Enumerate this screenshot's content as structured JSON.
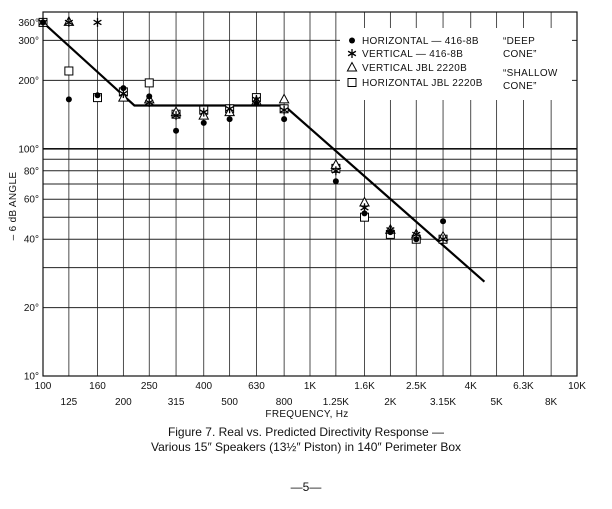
{
  "chart_data": {
    "type": "scatter",
    "title": "",
    "xlabel": "FREQUENCY, Hz",
    "ylabel": "– 6 dB ANGLE",
    "x_scale": "log",
    "y_scale": "log",
    "xlim": [
      100,
      10000
    ],
    "ylim": [
      10,
      400
    ],
    "x_ticks_upper": [
      {
        "value": 100,
        "label": "100"
      },
      {
        "value": 160,
        "label": "160"
      },
      {
        "value": 250,
        "label": "250"
      },
      {
        "value": 400,
        "label": "400"
      },
      {
        "value": 630,
        "label": "630"
      },
      {
        "value": 1000,
        "label": "1K"
      },
      {
        "value": 1600,
        "label": "1.6K"
      },
      {
        "value": 2500,
        "label": "2.5K"
      },
      {
        "value": 4000,
        "label": "4K"
      },
      {
        "value": 6300,
        "label": "6.3K"
      },
      {
        "value": 10000,
        "label": "10K"
      }
    ],
    "x_ticks_lower": [
      {
        "value": 125,
        "label": "125"
      },
      {
        "value": 200,
        "label": "200"
      },
      {
        "value": 315,
        "label": "315"
      },
      {
        "value": 500,
        "label": "500"
      },
      {
        "value": 800,
        "label": "800"
      },
      {
        "value": 1250,
        "label": "1.25K"
      },
      {
        "value": 2000,
        "label": "2K"
      },
      {
        "value": 3150,
        "label": "3.15K"
      },
      {
        "value": 5000,
        "label": "5K"
      },
      {
        "value": 8000,
        "label": "8K"
      }
    ],
    "y_ticks": [
      {
        "value": 10,
        "label": "10°"
      },
      {
        "value": 20,
        "label": "20°"
      },
      {
        "value": 40,
        "label": "40°"
      },
      {
        "value": 60,
        "label": "60°"
      },
      {
        "value": 80,
        "label": "80°"
      },
      {
        "value": 100,
        "label": "100°"
      },
      {
        "value": 200,
        "label": "200°"
      },
      {
        "value": 300,
        "label": "300°"
      },
      {
        "value": 360,
        "label": "360°"
      }
    ],
    "gridlines_y": [
      10,
      20,
      30,
      40,
      50,
      60,
      70,
      80,
      90,
      100,
      200,
      300,
      400
    ],
    "gridlines_x": [
      100,
      125,
      160,
      200,
      250,
      315,
      400,
      500,
      630,
      800,
      1000,
      1250,
      1600,
      2000,
      2500,
      3150,
      4000,
      5000,
      6300,
      8000,
      10000
    ],
    "legend": {
      "placement": "top-right",
      "entries": [
        {
          "series": "horizontal_416",
          "label": "HORIZONTAL — 416-8B"
        },
        {
          "series": "vertical_416",
          "label": "VERTICAL — 416-8B"
        },
        {
          "series": "vertical_2220",
          "label": "VERTICAL JBL 2220B"
        },
        {
          "series": "horizontal_2220",
          "label": "HORIZONTAL JBL 2220B"
        }
      ],
      "notes": [
        "“DEEP",
        "CONE”",
        "“SHALLOW",
        "CONE”"
      ]
    },
    "predicted_line": {
      "points": [
        [
          100,
          360
        ],
        [
          220,
          155
        ],
        [
          800,
          155
        ],
        [
          4500,
          26
        ]
      ]
    },
    "series": [
      {
        "id": "horizontal_416",
        "marker": "circle",
        "points": [
          [
            100,
            360
          ],
          [
            125,
            165
          ],
          [
            160,
            172
          ],
          [
            200,
            185
          ],
          [
            250,
            170
          ],
          [
            315,
            120
          ],
          [
            400,
            130
          ],
          [
            500,
            135
          ],
          [
            630,
            158
          ],
          [
            800,
            135
          ],
          [
            1250,
            72
          ],
          [
            1600,
            52
          ],
          [
            2000,
            43
          ],
          [
            2500,
            40
          ],
          [
            3150,
            48
          ]
        ]
      },
      {
        "id": "vertical_416",
        "marker": "star",
        "points": [
          [
            100,
            360
          ],
          [
            125,
            360
          ],
          [
            160,
            360
          ],
          [
            200,
            175
          ],
          [
            250,
            160
          ],
          [
            315,
            140
          ],
          [
            400,
            145
          ],
          [
            500,
            150
          ],
          [
            630,
            165
          ],
          [
            800,
            148
          ],
          [
            1250,
            80
          ],
          [
            1600,
            55
          ],
          [
            2000,
            44
          ],
          [
            2500,
            42
          ],
          [
            3150,
            40
          ]
        ]
      },
      {
        "id": "vertical_2220",
        "marker": "triangle",
        "points": [
          [
            125,
            362
          ],
          [
            200,
            168
          ],
          [
            250,
            165
          ],
          [
            315,
            145
          ],
          [
            400,
            140
          ],
          [
            500,
            145
          ],
          [
            630,
            162
          ],
          [
            800,
            165
          ],
          [
            1250,
            85
          ],
          [
            1600,
            58
          ],
          [
            2000,
            44
          ],
          [
            2500,
            42
          ],
          [
            3150,
            41
          ]
        ]
      },
      {
        "id": "horizontal_2220",
        "marker": "square",
        "points": [
          [
            100,
            360
          ],
          [
            125,
            220
          ],
          [
            160,
            168
          ],
          [
            200,
            178
          ],
          [
            250,
            195
          ],
          [
            315,
            142
          ],
          [
            400,
            148
          ],
          [
            500,
            150
          ],
          [
            630,
            168
          ],
          [
            800,
            150
          ],
          [
            1250,
            82
          ],
          [
            1600,
            50
          ],
          [
            2000,
            42
          ],
          [
            2500,
            40
          ],
          [
            3150,
            40
          ]
        ]
      }
    ]
  },
  "caption": {
    "line1": "Figure 7. Real vs. Predicted Directivity Response —",
    "line2": "Various 15″ Speakers (13½″ Piston) in 140″ Perimeter Box"
  },
  "page_number": "—5—"
}
